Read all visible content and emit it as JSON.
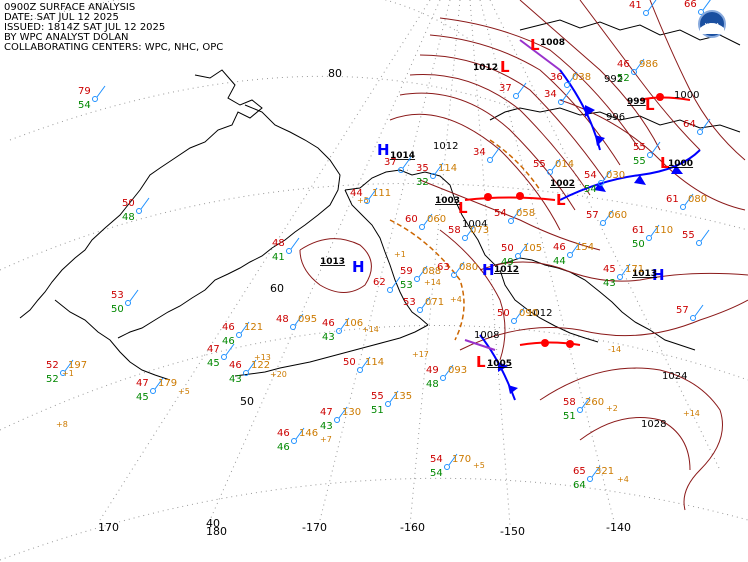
{
  "header": {
    "lines": [
      "0900Z SURFACE ANALYSIS",
      "DATE: SAT JUL 12 2025",
      "ISSUED: 1814Z SAT JUL 12 2025",
      "BY WPC ANALYST DOLAN",
      "COLLABORATING CENTERS: WPC, NHC, OPC"
    ]
  },
  "logo": {
    "name": "noaa-logo",
    "text": "NOAA"
  },
  "graticule": {
    "lat_labels": [
      "80",
      "60",
      "50",
      "40"
    ],
    "lon_labels": [
      "170",
      "180",
      "-170",
      "-160",
      "-150",
      "-140"
    ]
  },
  "colors": {
    "isobar": "#8b1a1a",
    "low": "#ff0000",
    "high": "#0000ff",
    "cold_front": "#0000ff",
    "warm_front": "#ff0000",
    "occluded_front": "#9932cc",
    "trough": "#cc6600",
    "temperature": "#cc0000",
    "dewpoint": "#008800",
    "pressure": "#cc7a00",
    "station": "#1e90ff",
    "coast": "#000000",
    "grid": "#888888"
  },
  "pressure_centers": [
    {
      "type": "H",
      "value": "1014"
    },
    {
      "type": "H",
      "value": "1013"
    },
    {
      "type": "H",
      "value": "1012"
    },
    {
      "type": "H",
      "value": "1013"
    },
    {
      "type": "L",
      "value": "1003"
    },
    {
      "type": "L",
      "value": "1002"
    },
    {
      "type": "L",
      "value": "1005"
    },
    {
      "type": "L",
      "value": "1000"
    },
    {
      "type": "L",
      "value": "999"
    },
    {
      "type": "L",
      "value": "1008"
    },
    {
      "type": "L",
      "value": "1012"
    }
  ],
  "isobar_labels": [
    "1012",
    "1004",
    "1008",
    "1024",
    "1028",
    "1000",
    "996",
    "992",
    "1012"
  ],
  "station_obs": [
    {
      "t": "79",
      "td": "54",
      "p": ""
    },
    {
      "t": "50",
      "td": "48",
      "p": ""
    },
    {
      "t": "53",
      "td": "50",
      "p": ""
    },
    {
      "t": "52",
      "td": "52",
      "p": "197"
    },
    {
      "t": "47",
      "td": "45",
      "p": "179"
    },
    {
      "t": "46",
      "td": "46",
      "p": "121"
    },
    {
      "t": "47",
      "td": "45",
      "p": ""
    },
    {
      "t": "46",
      "td": "43",
      "p": "122"
    },
    {
      "t": "48",
      "td": "41",
      "p": ""
    },
    {
      "t": "48",
      "td": "",
      "p": "095"
    },
    {
      "t": "46",
      "td": "43",
      "p": "106"
    },
    {
      "t": "46",
      "td": "46",
      "p": "146"
    },
    {
      "t": "47",
      "td": "43",
      "p": "130"
    },
    {
      "t": "50",
      "td": "",
      "p": "114"
    },
    {
      "t": "55",
      "td": "51",
      "p": "135"
    },
    {
      "t": "54",
      "td": "54",
      "p": "170"
    },
    {
      "t": "65",
      "td": "64",
      "p": "321"
    },
    {
      "t": "58",
      "td": "51",
      "p": "260"
    },
    {
      "t": "49",
      "td": "48",
      "p": "093"
    },
    {
      "t": "50",
      "td": "",
      "p": "090"
    },
    {
      "t": "45",
      "td": "43",
      "p": "171"
    },
    {
      "t": "46",
      "td": "44",
      "p": "154"
    },
    {
      "t": "61",
      "td": "50",
      "p": "110"
    },
    {
      "t": "61",
      "td": "",
      "p": "080"
    },
    {
      "t": "55",
      "td": "",
      "p": ""
    },
    {
      "t": "54",
      "td": "",
      "p": "058"
    },
    {
      "t": "50",
      "td": "49",
      "p": "105"
    },
    {
      "t": "63",
      "td": "",
      "p": "080"
    },
    {
      "t": "60",
      "td": "",
      "p": "060"
    },
    {
      "t": "58",
      "td": "",
      "p": "073"
    },
    {
      "t": "44",
      "td": "",
      "p": "111"
    },
    {
      "t": "35",
      "td": "32",
      "p": "114"
    },
    {
      "t": "37",
      "td": "",
      "p": ""
    },
    {
      "t": "34",
      "td": "",
      "p": ""
    },
    {
      "t": "55",
      "td": "",
      "p": "014"
    },
    {
      "t": "54",
      "td": "54",
      "p": "030"
    },
    {
      "t": "57",
      "td": "",
      "p": "060"
    },
    {
      "t": "55",
      "td": "55",
      "p": ""
    },
    {
      "t": "46",
      "td": "52",
      "p": "986"
    },
    {
      "t": "41",
      "td": "",
      "p": ""
    },
    {
      "t": "37",
      "td": "",
      "p": ""
    },
    {
      "t": "36",
      "td": "",
      "p": "038"
    },
    {
      "t": "34",
      "td": "",
      "p": ""
    },
    {
      "t": "59",
      "td": "53",
      "p": "088"
    },
    {
      "t": "62",
      "td": "",
      "p": ""
    },
    {
      "t": "53",
      "td": "",
      "p": "071"
    },
    {
      "t": "57",
      "td": "",
      "p": ""
    },
    {
      "t": "66",
      "td": "",
      "p": ""
    },
    {
      "t": "64",
      "td": "",
      "p": ""
    }
  ],
  "pressure_tendencies": [
    "+1",
    "+5",
    "+13",
    "+20",
    "+14",
    "+7",
    "+5",
    "+2",
    "+4",
    "+14",
    "-14",
    "+17",
    "+5",
    "+14",
    "+4",
    "+1"
  ],
  "left_edge_label": "+8"
}
